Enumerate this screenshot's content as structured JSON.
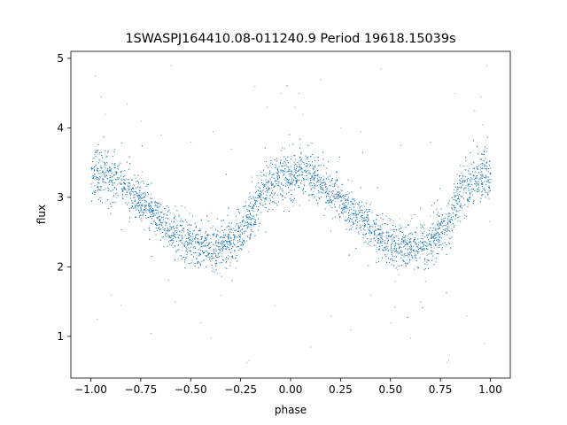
{
  "chart_data": {
    "type": "scatter",
    "title": "1SWASPJ164410.08-011240.9 Period 19618.15039s",
    "xlabel": "phase",
    "ylabel": "flux",
    "xlim": [
      -1.1,
      1.1
    ],
    "ylim": [
      0.4,
      5.1
    ],
    "xticks": [
      -1.0,
      -0.75,
      -0.5,
      -0.25,
      0.0,
      0.25,
      0.5,
      0.75,
      1.0
    ],
    "xtick_labels": [
      "−1.00",
      "−0.75",
      "−0.50",
      "−0.25",
      "0.00",
      "0.25",
      "0.50",
      "0.75",
      "1.00"
    ],
    "yticks": [
      1,
      2,
      3,
      4,
      5
    ],
    "ytick_labels": [
      "1",
      "2",
      "3",
      "4",
      "5"
    ],
    "grid": false,
    "marker_color": "#1f77b4",
    "series": [
      {
        "x": [
          -1.0,
          -0.95,
          -0.9,
          -0.85,
          -0.8,
          -0.75,
          -0.7,
          -0.65,
          -0.6,
          -0.55,
          -0.5,
          -0.45,
          -0.4,
          -0.35,
          -0.3,
          -0.25,
          -0.2,
          -0.15,
          -0.1,
          -0.05,
          0.0,
          0.05,
          0.1,
          0.15,
          0.2,
          0.25,
          0.3,
          0.35,
          0.4,
          0.45,
          0.5,
          0.55,
          0.6,
          0.65,
          0.7,
          0.75,
          0.8,
          0.85,
          0.9,
          0.95,
          1.0
        ],
        "y": [
          3.3,
          3.35,
          3.3,
          3.2,
          3.08,
          2.95,
          2.82,
          2.68,
          2.55,
          2.45,
          2.35,
          2.3,
          2.28,
          2.3,
          2.35,
          2.5,
          2.75,
          3.05,
          3.2,
          3.3,
          3.32,
          3.35,
          3.3,
          3.2,
          3.08,
          2.95,
          2.82,
          2.68,
          2.55,
          2.45,
          2.35,
          2.3,
          2.28,
          2.3,
          2.35,
          2.5,
          2.75,
          3.05,
          3.2,
          3.3,
          3.32
        ],
        "scatter_sd": [
          0.18,
          0.18,
          0.18,
          0.16,
          0.15,
          0.14,
          0.14,
          0.14,
          0.14,
          0.15,
          0.15,
          0.16,
          0.17,
          0.17,
          0.16,
          0.15,
          0.15,
          0.17,
          0.18,
          0.18,
          0.18,
          0.18,
          0.18,
          0.16,
          0.15,
          0.14,
          0.14,
          0.14,
          0.14,
          0.15,
          0.15,
          0.16,
          0.17,
          0.17,
          0.16,
          0.15,
          0.15,
          0.17,
          0.18,
          0.18,
          0.18
        ]
      }
    ],
    "outliers": [
      [
        -0.98,
        4.75
      ],
      [
        -0.95,
        4.45
      ],
      [
        -0.93,
        4.2
      ],
      [
        -0.97,
        1.25
      ],
      [
        -0.9,
        1.6
      ],
      [
        -0.85,
        1.45
      ],
      [
        -0.82,
        4.35
      ],
      [
        -0.75,
        4.1
      ],
      [
        -0.7,
        1.05
      ],
      [
        -0.65,
        3.9
      ],
      [
        -0.58,
        1.5
      ],
      [
        -0.5,
        3.8
      ],
      [
        -0.45,
        1.2
      ],
      [
        -0.4,
        0.98
      ],
      [
        -0.39,
        3.95
      ],
      [
        -0.35,
        1.6
      ],
      [
        -0.3,
        3.7
      ],
      [
        -0.22,
        0.63
      ],
      [
        -0.21,
        0.66
      ],
      [
        -0.18,
        4.6
      ],
      [
        -0.12,
        4.3
      ],
      [
        -0.08,
        1.45
      ],
      [
        -0.05,
        4.5
      ],
      [
        0.02,
        4.3
      ],
      [
        0.04,
        4.5
      ],
      [
        0.06,
        4.2
      ],
      [
        0.1,
        0.85
      ],
      [
        0.15,
        4.7
      ],
      [
        0.2,
        1.3
      ],
      [
        0.25,
        4.0
      ],
      [
        0.3,
        1.1
      ],
      [
        0.35,
        3.95
      ],
      [
        0.45,
        4.85
      ],
      [
        0.5,
        1.2
      ],
      [
        0.55,
        3.75
      ],
      [
        0.6,
        0.98
      ],
      [
        0.65,
        1.5
      ],
      [
        0.7,
        3.8
      ],
      [
        0.78,
        0.63
      ],
      [
        0.79,
        0.66
      ],
      [
        0.82,
        4.5
      ],
      [
        0.88,
        1.3
      ],
      [
        0.92,
        4.25
      ],
      [
        0.95,
        4.45
      ],
      [
        0.97,
        0.9
      ],
      [
        0.98,
        4.9
      ],
      [
        -0.6,
        4.9
      ],
      [
        0.4,
        1.6
      ]
    ]
  }
}
